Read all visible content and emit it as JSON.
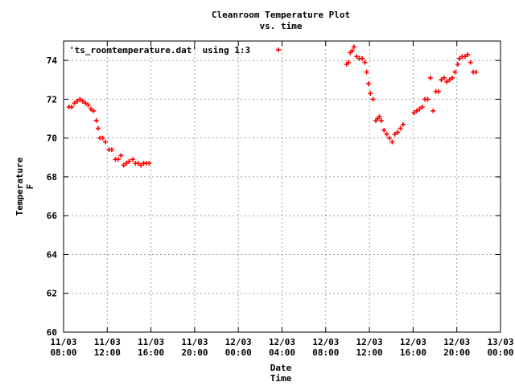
{
  "chart_data": {
    "type": "scatter",
    "title": [
      "Cleanroom Temperature Plot",
      "vs. time"
    ],
    "xlabel": [
      "Date",
      "Time"
    ],
    "ylabel": [
      "Temperature",
      "F"
    ],
    "legend": {
      "label": "'ts_roomtemperature.dat' using 1:3",
      "placement": "top-left",
      "marker": "plus",
      "color": "#ff0000"
    },
    "grid": true,
    "xlim": [
      "11/03 08:00",
      "13/03 00:00"
    ],
    "ylim": [
      60,
      75
    ],
    "x_ticks": [
      [
        "11/03",
        "08:00"
      ],
      [
        "11/03",
        "12:00"
      ],
      [
        "11/03",
        "16:00"
      ],
      [
        "11/03",
        "20:00"
      ],
      [
        "12/03",
        "00:00"
      ],
      [
        "12/03",
        "04:00"
      ],
      [
        "12/03",
        "08:00"
      ],
      [
        "12/03",
        "12:00"
      ],
      [
        "12/03",
        "16:00"
      ],
      [
        "12/03",
        "20:00"
      ],
      [
        "13/03",
        "00:00"
      ]
    ],
    "y_ticks": [
      "60",
      "62",
      "64",
      "66",
      "68",
      "70",
      "72",
      "74"
    ],
    "series": [
      {
        "name": "'ts_roomtemperature.dat' using 1:3",
        "color": "#ff0000",
        "points": [
          [
            "11/03 08:30",
            71.6
          ],
          [
            "11/03 08:45",
            71.6
          ],
          [
            "11/03 09:00",
            71.8
          ],
          [
            "11/03 09:15",
            71.9
          ],
          [
            "11/03 09:30",
            72.0
          ],
          [
            "11/03 09:45",
            71.9
          ],
          [
            "11/03 10:00",
            71.8
          ],
          [
            "11/03 10:15",
            71.7
          ],
          [
            "11/03 10:30",
            71.5
          ],
          [
            "11/03 10:45",
            71.4
          ],
          [
            "11/03 11:00",
            70.9
          ],
          [
            "11/03 11:10",
            70.5
          ],
          [
            "11/03 11:20",
            70.0
          ],
          [
            "11/03 11:35",
            70.0
          ],
          [
            "11/03 11:50",
            69.8
          ],
          [
            "11/03 12:10",
            69.4
          ],
          [
            "11/03 12:25",
            69.4
          ],
          [
            "11/03 12:45",
            68.9
          ],
          [
            "11/03 13:00",
            68.9
          ],
          [
            "11/03 13:15",
            69.1
          ],
          [
            "11/03 13:30",
            68.6
          ],
          [
            "11/03 13:45",
            68.7
          ],
          [
            "11/03 14:00",
            68.8
          ],
          [
            "11/03 14:20",
            68.9
          ],
          [
            "11/03 14:35",
            68.7
          ],
          [
            "11/03 14:50",
            68.7
          ],
          [
            "11/03 15:05",
            68.6
          ],
          [
            "11/03 15:20",
            68.7
          ],
          [
            "11/03 15:35",
            68.7
          ],
          [
            "11/03 15:50",
            68.7
          ],
          [
            "12/03 09:55",
            73.8
          ],
          [
            "12/03 10:05",
            73.9
          ],
          [
            "12/03 10:15",
            74.4
          ],
          [
            "12/03 10:25",
            74.5
          ],
          [
            "12/03 10:35",
            74.7
          ],
          [
            "12/03 10:50",
            74.2
          ],
          [
            "12/03 11:05",
            74.1
          ],
          [
            "12/03 11:20",
            74.1
          ],
          [
            "12/03 11:35",
            73.9
          ],
          [
            "12/03 11:45",
            73.4
          ],
          [
            "12/03 11:55",
            72.8
          ],
          [
            "12/03 12:05",
            72.3
          ],
          [
            "12/03 12:20",
            72.0
          ],
          [
            "12/03 12:35",
            70.9
          ],
          [
            "12/03 12:45",
            71.0
          ],
          [
            "12/03 12:55",
            71.1
          ],
          [
            "12/03 13:05",
            70.9
          ],
          [
            "12/03 13:20",
            70.4
          ],
          [
            "12/03 13:35",
            70.2
          ],
          [
            "12/03 13:50",
            70.0
          ],
          [
            "12/03 14:05",
            69.8
          ],
          [
            "12/03 14:20",
            70.2
          ],
          [
            "12/03 14:35",
            70.3
          ],
          [
            "12/03 14:50",
            70.5
          ],
          [
            "12/03 15:05",
            70.7
          ],
          [
            "12/03 16:05",
            71.3
          ],
          [
            "12/03 16:20",
            71.4
          ],
          [
            "12/03 16:35",
            71.5
          ],
          [
            "12/03 16:50",
            71.6
          ],
          [
            "12/03 17:05",
            72.0
          ],
          [
            "12/03 17:20",
            72.0
          ],
          [
            "12/03 17:35",
            73.1
          ],
          [
            "12/03 17:50",
            71.4
          ],
          [
            "12/03 18:05",
            72.4
          ],
          [
            "12/03 18:20",
            72.4
          ],
          [
            "12/03 18:35",
            73.0
          ],
          [
            "12/03 18:50",
            73.1
          ],
          [
            "12/03 19:05",
            72.9
          ],
          [
            "12/03 19:20",
            73.0
          ],
          [
            "12/03 19:35",
            73.1
          ],
          [
            "12/03 19:50",
            73.4
          ],
          [
            "12/03 20:05",
            73.8
          ],
          [
            "12/03 20:15",
            74.1
          ],
          [
            "12/03 20:30",
            74.2
          ],
          [
            "12/03 20:45",
            74.2
          ],
          [
            "12/03 21:00",
            74.3
          ],
          [
            "12/03 21:15",
            73.9
          ],
          [
            "12/03 21:30",
            73.4
          ],
          [
            "12/03 21:45",
            73.4
          ]
        ]
      }
    ]
  }
}
